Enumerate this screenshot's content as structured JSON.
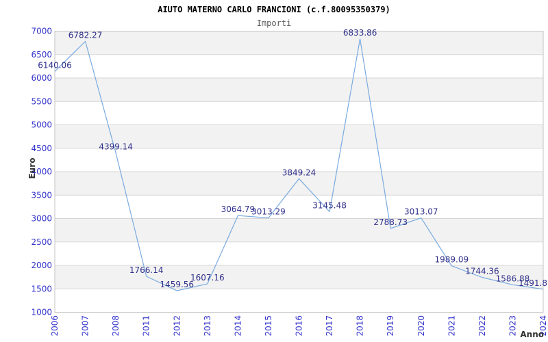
{
  "header": {
    "title": "AIUTO MATERNO CARLO FRANCIONI (c.f.80095350379)",
    "subtitle": "Importi"
  },
  "chart_data": {
    "type": "line",
    "title": "AIUTO MATERNO CARLO FRANCIONI (c.f.80095350379)",
    "subtitle": "Importi",
    "xlabel": "Anno",
    "ylabel": "Euro",
    "x": [
      "2006",
      "2007",
      "2008",
      "2011",
      "2012",
      "2013",
      "2014",
      "2015",
      "2016",
      "2017",
      "2018",
      "2019",
      "2020",
      "2021",
      "2022",
      "2023",
      "2024"
    ],
    "values": [
      6140.06,
      6782.27,
      4399.14,
      1766.14,
      1459.56,
      1607.16,
      3064.79,
      3013.29,
      3849.24,
      3145.48,
      6833.86,
      2788.73,
      3013.07,
      1989.09,
      1744.36,
      1586.88,
      1491.8
    ],
    "point_labels": [
      "6140.06",
      "6782.27",
      "4399.14",
      "1766.14",
      "1459.56",
      "1607.16",
      "3064.79",
      "3013.29",
      "3849.24",
      "3145.48",
      "6833.86",
      "2788.73",
      "3013.07",
      "1989.09",
      "1744.36",
      "1586.88",
      "1491.8"
    ],
    "ylim": [
      1000,
      7000
    ],
    "ytick_step": 500,
    "grid": true,
    "legend_position": "none",
    "colors": {
      "line": "#79aadf",
      "point_label": "#30308c",
      "tick_label": "#3333cc",
      "axis_title": "#333333",
      "band": "#f2f2f2",
      "gridline": "#d6d6d6",
      "plot_border": "#c3c3c3",
      "title": "#000000",
      "subtitle": "#5a5a5a"
    }
  }
}
